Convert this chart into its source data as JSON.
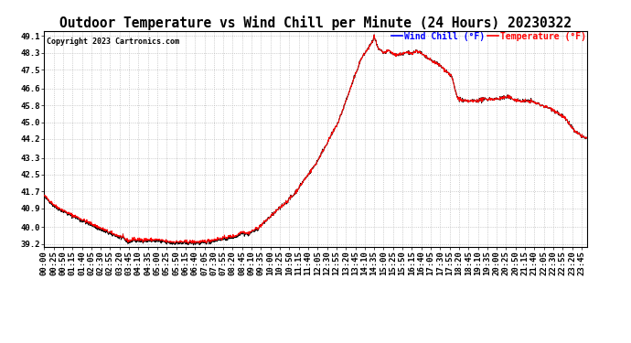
{
  "title": "Outdoor Temperature vs Wind Chill per Minute (24 Hours) 20230322",
  "copyright": "Copyright 2023 Cartronics.com",
  "legend_wind_chill": "Wind Chill (°F)",
  "legend_temperature": "Temperature (°F)",
  "wind_chill_color": "black",
  "temperature_color": "red",
  "yticks": [
    39.2,
    40.0,
    40.9,
    41.7,
    42.5,
    43.3,
    44.2,
    45.0,
    45.8,
    46.6,
    47.5,
    48.3,
    49.1
  ],
  "ymin": 39.05,
  "ymax": 49.35,
  "background_color": "#ffffff",
  "grid_color": "#bbbbbb",
  "title_fontsize": 10.5,
  "tick_fontsize": 6.5,
  "copyright_fontsize": 6
}
